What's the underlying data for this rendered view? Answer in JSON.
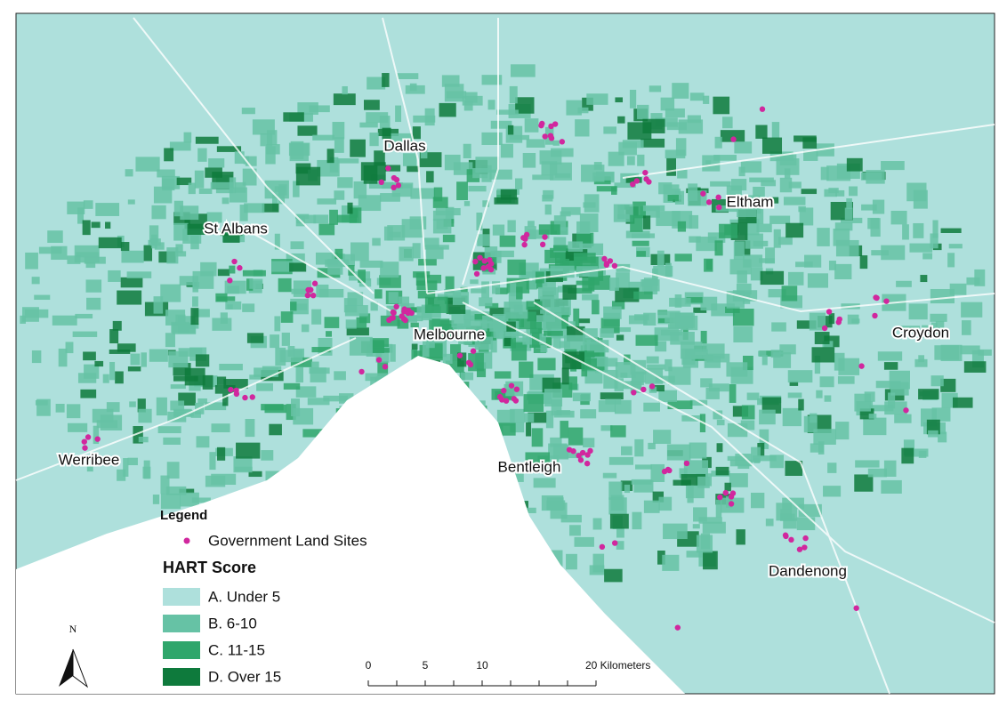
{
  "places": [
    {
      "label": "Dallas"
    },
    {
      "label": "St Albans"
    },
    {
      "label": "Eltham"
    },
    {
      "label": "Melbourne"
    },
    {
      "label": "Croydon"
    },
    {
      "label": "Werribee"
    },
    {
      "label": "Bentleigh"
    },
    {
      "label": "Dandenong"
    }
  ],
  "legend": {
    "title": "Legend",
    "sites": "Government Land Sites",
    "site_color": "#d1279e",
    "score_title": "HART Score",
    "classes": [
      {
        "label": "A. Under 5",
        "color": "#aee0dc"
      },
      {
        "label": "B. 6-10",
        "color": "#66c2a5"
      },
      {
        "label": "C. 11-15",
        "color": "#2fa66b"
      },
      {
        "label": "D. Over 15",
        "color": "#0e7a3c"
      }
    ]
  },
  "north": "N",
  "scale_bar": {
    "labels": [
      "0",
      "5",
      "10",
      "20 Kilometers"
    ]
  }
}
